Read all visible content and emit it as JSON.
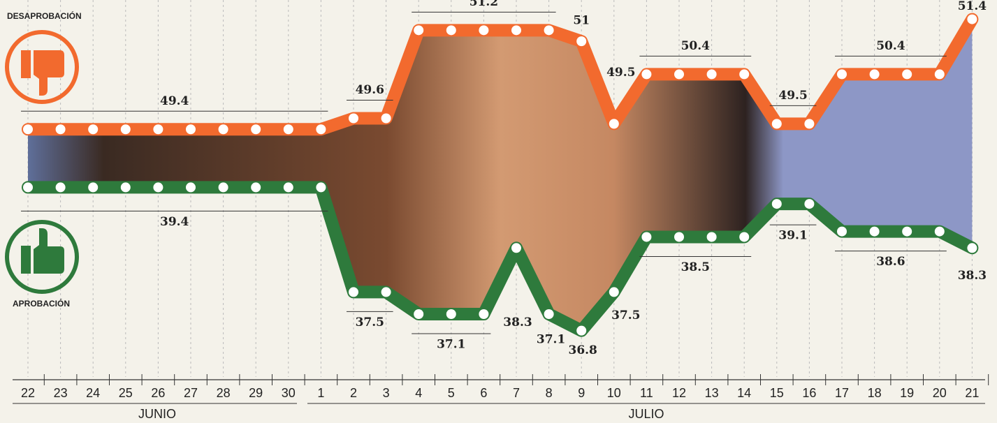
{
  "chart_data": {
    "type": "line",
    "categories": [
      "22",
      "23",
      "24",
      "25",
      "26",
      "27",
      "28",
      "29",
      "30",
      "1",
      "2",
      "3",
      "4",
      "5",
      "6",
      "7",
      "8",
      "9",
      "10",
      "11",
      "12",
      "13",
      "14",
      "15",
      "16",
      "17",
      "18",
      "19",
      "20",
      "21"
    ],
    "months": [
      "JUNIO",
      "JULIO"
    ],
    "series": [
      {
        "name": "DESAPROBACIÓN",
        "color": "#f26a2e",
        "values": [
          49.4,
          49.4,
          49.4,
          49.4,
          49.4,
          49.4,
          49.4,
          49.4,
          49.4,
          49.4,
          49.6,
          49.6,
          51.2,
          51.2,
          51.2,
          51.2,
          51.2,
          51,
          49.5,
          50.4,
          50.4,
          50.4,
          50.4,
          49.5,
          49.5,
          50.4,
          50.4,
          50.4,
          50.4,
          51.4
        ]
      },
      {
        "name": "APROBACIÓN",
        "color": "#2e7a3c",
        "axis": "y2",
        "values": [
          39.4,
          39.4,
          39.4,
          39.4,
          39.4,
          39.4,
          39.4,
          39.4,
          39.4,
          39.4,
          37.5,
          37.5,
          37.1,
          37.1,
          37.1,
          38.3,
          37.1,
          36.8,
          37.5,
          38.5,
          38.5,
          38.5,
          38.5,
          39.1,
          39.1,
          38.6,
          38.6,
          38.6,
          38.6,
          38.3
        ]
      }
    ],
    "ylim": [
      44.9,
      51.75
    ],
    "y2lim": [
      35.96,
      42.8
    ],
    "grid": true
  }
}
